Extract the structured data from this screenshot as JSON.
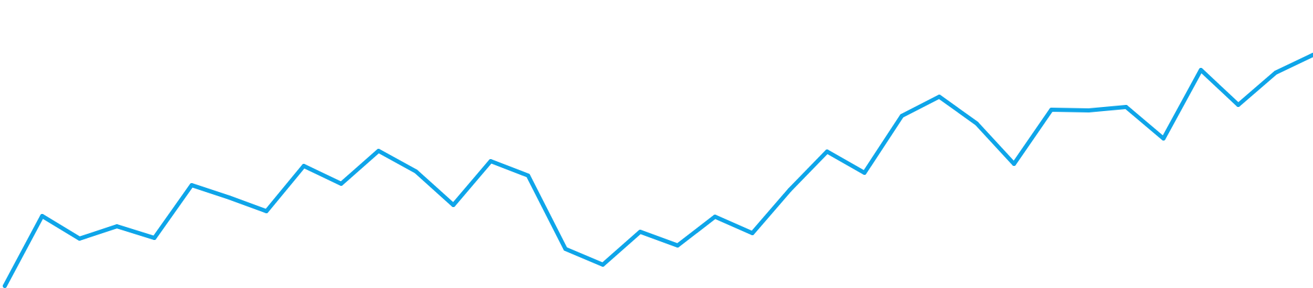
{
  "chart_data": {
    "type": "line",
    "grid": false,
    "legend": "none",
    "axes_visible": false,
    "x": [
      0,
      1,
      2,
      3,
      4,
      5,
      6,
      7,
      8,
      9,
      10,
      11,
      12,
      13,
      14,
      15,
      16,
      17,
      18,
      19,
      20,
      21,
      22,
      23,
      24,
      25,
      26,
      27,
      28,
      29,
      30,
      31,
      32,
      33,
      34,
      35
    ],
    "xlim": [
      0,
      35
    ],
    "ylim": [
      0,
      420
    ],
    "series": [
      {
        "color": "#0EA5E9",
        "values": [
          3,
          105,
          72,
          90,
          73,
          150,
          132,
          112,
          178,
          152,
          200,
          170,
          121,
          185,
          164,
          57,
          34,
          82,
          62,
          104,
          80,
          143,
          199,
          168,
          251,
          279,
          240,
          181,
          260,
          259,
          264,
          218,
          318,
          267,
          314,
          340
        ]
      }
    ]
  }
}
